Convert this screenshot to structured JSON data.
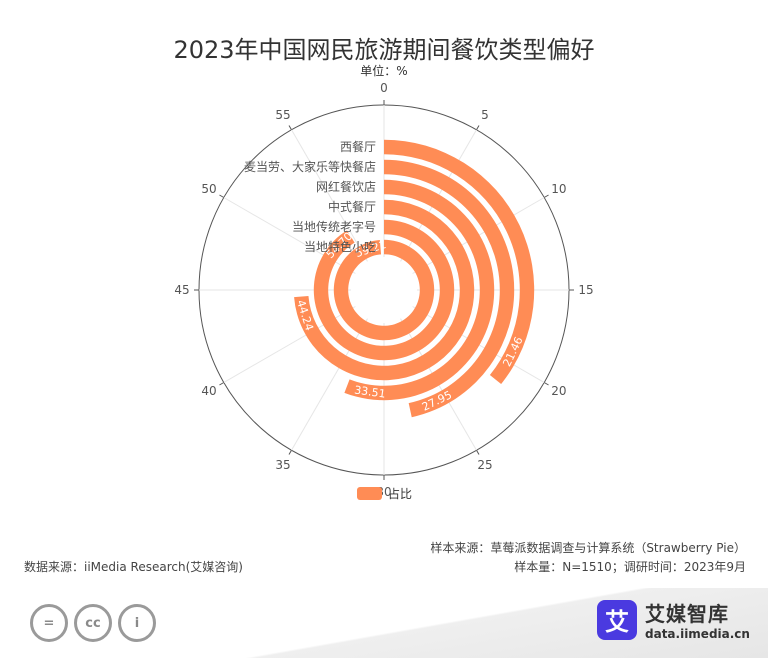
{
  "title": "2023年中国网民旅游期间餐饮类型偏好",
  "unit_label": "单位：%",
  "legend": {
    "label": "占比",
    "color": "#ff8c55"
  },
  "source_left": "数据来源：iiMedia Research(艾媒咨询)",
  "source_right_1": "样本来源：草莓派数据调查与计算系统（Strawberry Pie）",
  "source_right_2": "样本量：N=1510；调研时间：2023年9月",
  "footer": {
    "cc_icons": [
      "equal-icon",
      "cc-icon",
      "person-icon"
    ],
    "cc_glyphs": [
      "=",
      "cc",
      "i"
    ],
    "brand_logo_char": "艾",
    "brand_name": "艾媒智库",
    "brand_url": "data.iimedia.cn"
  },
  "chart_data": {
    "type": "bar",
    "subtype": "polar-radial-bar",
    "categories": [
      "西餐厅",
      "麦当劳、大家乐等快餐店",
      "网红餐饮店",
      "中式餐厅",
      "当地传统老字号",
      "当地特色小吃"
    ],
    "values": [
      21.46,
      27.95,
      33.51,
      44.24,
      54.7,
      59.21
    ],
    "value_labels": [
      "21.46",
      "27.95",
      "33.51",
      "44.24",
      "54.70",
      "59.21"
    ],
    "angle_axis": {
      "min": 0,
      "max": 60,
      "ticks": [
        0,
        5,
        10,
        15,
        20,
        25,
        30,
        35,
        40,
        45,
        50,
        55
      ]
    },
    "bar_color": "#ff8c55",
    "legend_position": "bottom",
    "grid": true
  }
}
